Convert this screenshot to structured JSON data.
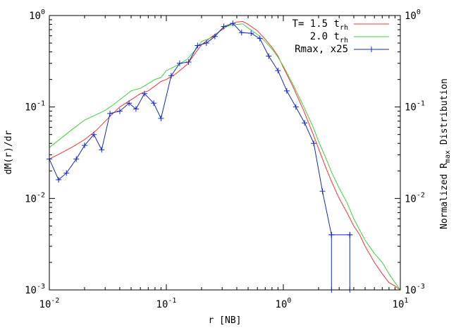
{
  "chart_data": {
    "type": "line",
    "title": "",
    "xlabel": "r [NB]",
    "ylabel_left": "dM(r)/dr",
    "ylabel_right_parts": [
      "Normalized R",
      "max",
      " Distribution"
    ],
    "x_scale": "log",
    "y_scale": "log",
    "xlim": [
      0.01,
      10
    ],
    "ylim": [
      0.001,
      1
    ],
    "grid": false,
    "legend_position": "top-right",
    "x_ticks": [
      {
        "value": 0.01,
        "base": "10",
        "exp": "-2"
      },
      {
        "value": 0.1,
        "base": "10",
        "exp": "-1"
      },
      {
        "value": 1,
        "base": "10",
        "exp": "0"
      },
      {
        "value": 10,
        "base": "10",
        "exp": "1"
      }
    ],
    "y_ticks": [
      {
        "value": 0.001,
        "base": "10",
        "exp": "-3"
      },
      {
        "value": 0.01,
        "base": "10",
        "exp": "-2"
      },
      {
        "value": 0.1,
        "base": "10",
        "exp": "-1"
      },
      {
        "value": 1,
        "base": "10",
        "exp": "0"
      }
    ],
    "series": [
      {
        "name_parts": [
          "T= 1.5 t",
          "rh"
        ],
        "color": "#ff3030",
        "style": "line",
        "x": [
          0.01,
          0.013,
          0.016,
          0.02,
          0.025,
          0.03,
          0.035,
          0.04,
          0.05,
          0.06,
          0.07,
          0.08,
          0.09,
          0.1,
          0.12,
          0.15,
          0.18,
          0.2,
          0.25,
          0.3,
          0.35,
          0.4,
          0.45,
          0.5,
          0.6,
          0.7,
          0.8,
          0.9,
          1.0,
          1.2,
          1.5,
          1.8,
          2.0,
          2.3,
          2.6,
          3.0,
          3.5,
          4.0,
          4.5,
          5.0,
          6.0,
          7.0,
          8.0,
          9.0,
          10.0
        ],
        "y": [
          0.027,
          0.032,
          0.037,
          0.044,
          0.055,
          0.07,
          0.085,
          0.1,
          0.12,
          0.14,
          0.15,
          0.17,
          0.19,
          0.2,
          0.23,
          0.29,
          0.4,
          0.48,
          0.6,
          0.7,
          0.8,
          0.85,
          0.86,
          0.8,
          0.68,
          0.55,
          0.45,
          0.36,
          0.27,
          0.17,
          0.09,
          0.05,
          0.035,
          0.022,
          0.015,
          0.01,
          0.007,
          0.005,
          0.004,
          0.003,
          0.002,
          0.0015,
          0.0012,
          0.0011,
          0.001
        ]
      },
      {
        "name_parts": [
          "2.0 t",
          "rh"
        ],
        "color": "#3cd23c",
        "style": "line",
        "x": [
          0.01,
          0.013,
          0.016,
          0.02,
          0.025,
          0.03,
          0.035,
          0.04,
          0.05,
          0.06,
          0.07,
          0.08,
          0.09,
          0.1,
          0.12,
          0.15,
          0.18,
          0.2,
          0.25,
          0.3,
          0.35,
          0.4,
          0.45,
          0.5,
          0.6,
          0.7,
          0.8,
          0.9,
          1.0,
          1.2,
          1.5,
          1.8,
          2.0,
          2.3,
          2.6,
          3.0,
          3.5,
          4.0,
          4.5,
          5.0,
          6.0,
          7.0,
          8.0,
          9.0,
          10.0
        ],
        "y": [
          0.036,
          0.047,
          0.058,
          0.072,
          0.082,
          0.092,
          0.105,
          0.12,
          0.15,
          0.16,
          0.18,
          0.2,
          0.21,
          0.25,
          0.28,
          0.33,
          0.43,
          0.52,
          0.58,
          0.72,
          0.78,
          0.8,
          0.81,
          0.73,
          0.62,
          0.52,
          0.43,
          0.35,
          0.28,
          0.18,
          0.1,
          0.06,
          0.042,
          0.028,
          0.019,
          0.013,
          0.009,
          0.006,
          0.0045,
          0.0035,
          0.0025,
          0.002,
          0.0015,
          0.0012,
          0.001
        ]
      },
      {
        "name": "Rmax, x25",
        "color": "#1428c8",
        "style": "linespoints",
        "x": [
          0.01,
          0.012,
          0.014,
          0.017,
          0.02,
          0.024,
          0.028,
          0.033,
          0.04,
          0.048,
          0.055,
          0.065,
          0.078,
          0.09,
          0.11,
          0.13,
          0.155,
          0.185,
          0.22,
          0.26,
          0.31,
          0.37,
          0.44,
          0.53,
          0.63,
          0.75,
          0.9,
          1.07,
          1.28,
          1.52,
          1.82,
          2.16,
          2.58,
          2.58,
          2.58,
          3.7,
          3.7,
          3.7
        ],
        "y": [
          0.027,
          0.016,
          0.019,
          0.027,
          0.038,
          0.05,
          0.034,
          0.085,
          0.09,
          0.11,
          0.095,
          0.14,
          0.11,
          0.075,
          0.22,
          0.3,
          0.31,
          0.47,
          0.5,
          0.59,
          0.76,
          0.82,
          0.65,
          0.64,
          0.56,
          0.36,
          0.25,
          0.15,
          0.1,
          0.067,
          0.04,
          0.012,
          0.004,
          0.001,
          0.004,
          0.004,
          0.001,
          0.004
        ]
      }
    ]
  }
}
